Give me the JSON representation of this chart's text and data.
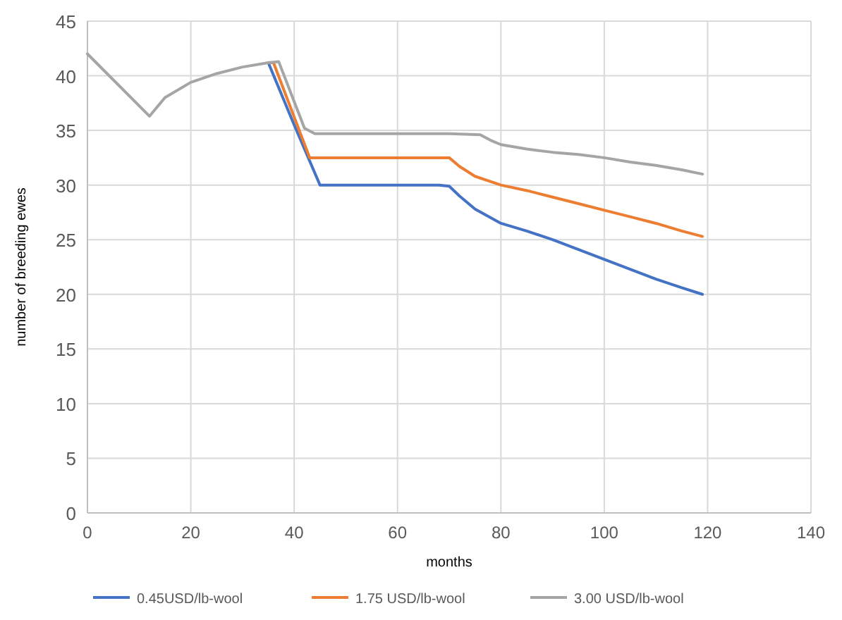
{
  "chart_data": {
    "type": "line",
    "xlabel": "months",
    "ylabel": "number of breeding ewes",
    "xlim": [
      0,
      140
    ],
    "xticks": [
      0,
      20,
      40,
      60,
      80,
      100,
      120,
      140
    ],
    "ylim": [
      0,
      45
    ],
    "yticks": [
      0,
      5,
      10,
      15,
      20,
      25,
      30,
      35,
      40,
      45
    ],
    "grid": true,
    "legend": "bottom",
    "marker": "none",
    "line_style": "solid",
    "series": [
      {
        "name": "0.45USD/lb-wool",
        "color": "#4472c4",
        "x": [
          35,
          40,
          45,
          50,
          60,
          68,
          70,
          72,
          75,
          80,
          85,
          90,
          95,
          100,
          105,
          110,
          115,
          119
        ],
        "values": [
          41.2,
          35.5,
          30,
          30,
          30,
          30,
          29.9,
          29,
          27.8,
          26.5,
          25.8,
          25,
          24.1,
          23.2,
          22.3,
          21.4,
          20.6,
          20
        ]
      },
      {
        "name": "1.75 USD/lb-wool",
        "color": "#ed7d31",
        "x": [
          35,
          36,
          43,
          50,
          60,
          70,
          72,
          75,
          80,
          85,
          90,
          95,
          100,
          105,
          110,
          115,
          119
        ],
        "values": [
          41.2,
          41.2,
          32.5,
          32.5,
          32.5,
          32.5,
          31.7,
          30.8,
          30,
          29.5,
          28.9,
          28.3,
          27.7,
          27.1,
          26.5,
          25.8,
          25.3
        ]
      },
      {
        "name": "3.00 USD/lb-wool",
        "color": "#a5a5a5",
        "x": [
          0,
          12,
          15,
          20,
          25,
          30,
          35,
          37,
          42,
          44,
          50,
          60,
          70,
          76,
          78,
          80,
          85,
          90,
          95,
          100,
          105,
          110,
          115,
          119
        ],
        "values": [
          42,
          36.3,
          38,
          39.4,
          40.2,
          40.8,
          41.2,
          41.3,
          35.2,
          34.7,
          34.7,
          34.7,
          34.7,
          34.6,
          34.1,
          33.7,
          33.3,
          33,
          32.8,
          32.5,
          32.1,
          31.8,
          31.4,
          31
        ]
      }
    ]
  }
}
